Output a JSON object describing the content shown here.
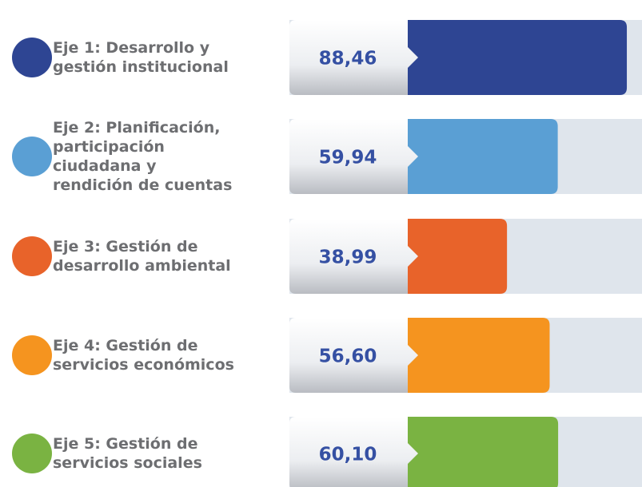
{
  "chart_data": {
    "type": "bar",
    "categories": [
      "Eje 1: Desarrollo y\ngestión institucional",
      "Eje 2: Planificación,\nparticipación\nciudadana  y\nrendición de cuentas",
      "Eje 3: Gestión de\ndesarrollo ambiental",
      "Eje 4: Gestión de\nservicios económicos",
      "Eje 5: Gestión de\nservicios sociales"
    ],
    "values": [
      88.46,
      59.94,
      38.99,
      56.6,
      60.1
    ],
    "value_labels": [
      "88,46",
      "59,94",
      "38,99",
      "56,60",
      "60,10"
    ],
    "colors": [
      "#2e4593",
      "#5a9fd4",
      "#e8632a",
      "#f5941f",
      "#7ab342"
    ],
    "xlim": [
      0,
      100
    ]
  }
}
